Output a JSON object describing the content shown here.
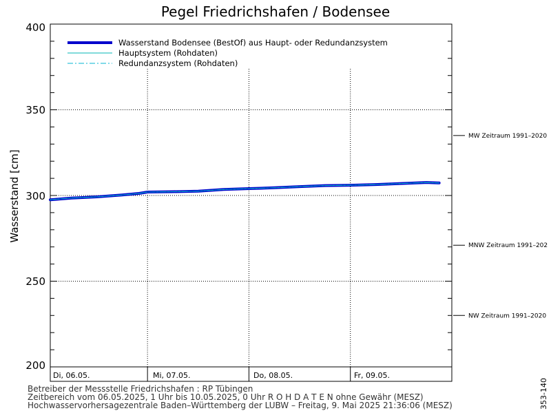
{
  "chart_data": {
    "type": "line",
    "title": "Pegel Friedrichshafen / Bodensee",
    "ylabel": "Wasserstand [cm]",
    "ylim": [
      200,
      400
    ],
    "yticks": [
      "200",
      "250",
      "300",
      "350",
      "400"
    ],
    "x_categories": [
      "Di, 06.05.",
      "Mi, 07.05.",
      "Do, 08.05.",
      "Fr, 09.05."
    ],
    "xlim": [
      "06.05.2025 01:00",
      "10.05.2025 00:00"
    ],
    "grid": true,
    "legend_position": "top-left",
    "legend": [
      "Wasserstand Bodensee  (BestOf)  aus Haupt- oder Redundanzsystem",
      "Hauptsystem (Rohdaten)",
      "Redundanzsystem (Rohdaten)"
    ],
    "series": [
      {
        "name": "Wasserstand Bodensee  (BestOf)  aus Haupt- oder Redundanzsystem",
        "color": "#0000cc",
        "x": [
          "06.05. 01:00",
          "06.05. 06:00",
          "06.05. 12:00",
          "06.05. 18:00",
          "06.05. 22:00",
          "07.05. 00:00",
          "07.05. 06:00",
          "07.05. 12:00",
          "07.05. 18:00",
          "08.05. 00:00",
          "08.05. 06:00",
          "08.05. 12:00",
          "08.05. 18:00",
          "09.05. 00:00",
          "09.05. 06:00",
          "09.05. 12:00",
          "09.05. 18:00",
          "09.05. 21:00"
        ],
        "values": [
          297.5,
          298.5,
          299.2,
          300.3,
          301.2,
          302.0,
          302.2,
          302.5,
          303.5,
          304.0,
          304.5,
          305.2,
          305.8,
          306.0,
          306.4,
          307.0,
          307.6,
          307.3
        ]
      },
      {
        "name": "Hauptsystem (Rohdaten)",
        "color": "#00b4b4",
        "x": [
          "06.05. 01:00",
          "06.05. 06:00",
          "06.05. 12:00",
          "06.05. 18:00",
          "06.05. 22:00",
          "07.05. 00:00",
          "07.05. 06:00",
          "07.05. 12:00",
          "07.05. 18:00",
          "08.05. 00:00",
          "08.05. 06:00",
          "08.05. 12:00",
          "08.05. 18:00",
          "09.05. 00:00",
          "09.05. 06:00",
          "09.05. 12:00",
          "09.05. 18:00",
          "09.05. 21:00"
        ],
        "values": [
          297.5,
          298.5,
          299.2,
          300.3,
          301.2,
          302.0,
          302.2,
          302.5,
          303.5,
          304.0,
          304.5,
          305.2,
          305.8,
          306.0,
          306.4,
          307.0,
          307.6,
          307.3
        ]
      },
      {
        "name": "Redundanzsystem (Rohdaten)",
        "color": "#00b4d2",
        "x": [
          "06.05. 01:00",
          "06.05. 06:00",
          "06.05. 12:00",
          "06.05. 18:00",
          "06.05. 22:00",
          "07.05. 00:00",
          "07.05. 06:00",
          "07.05. 12:00",
          "07.05. 18:00",
          "08.05. 00:00",
          "08.05. 06:00",
          "08.05. 12:00",
          "08.05. 18:00",
          "09.05. 00:00",
          "09.05. 06:00",
          "09.05. 12:00",
          "09.05. 18:00",
          "09.05. 21:00"
        ],
        "values": [
          297.5,
          298.5,
          299.2,
          300.3,
          301.2,
          302.0,
          302.2,
          302.5,
          303.5,
          304.0,
          304.5,
          305.2,
          305.8,
          306.0,
          306.4,
          307.0,
          307.6,
          307.3
        ]
      }
    ],
    "reference_lines": [
      {
        "label": "MW Zeitraum 1991–2020",
        "value": 335
      },
      {
        "label": "MNW Zeitraum 1991–202",
        "value": 271
      },
      {
        "label": "NW Zeitraum 1991–2020",
        "value": 230
      }
    ]
  },
  "footer": {
    "line1": "Betreiber der Messstelle Friedrichshafen : RP Tübingen",
    "line2": "Zeitbereich vom 06.05.2025, 1 Uhr bis 10.05.2025, 0 Uhr   R O H D A T E N ohne Gewähr (MESZ)",
    "line3": "Hochwasservorhersagezentrale Baden–Württemberg der LUBW – Freitag, 9. Mai 2025 21:36:06 (MESZ)"
  },
  "side_id": "353-140"
}
